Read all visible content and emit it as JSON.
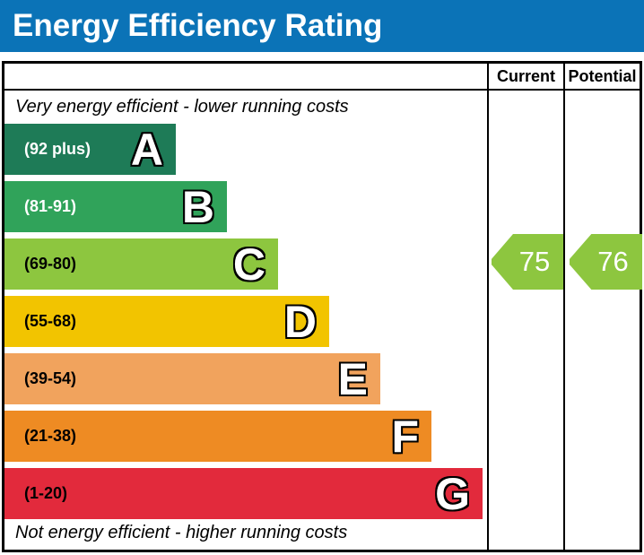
{
  "title": "Energy Efficiency Rating",
  "colors": {
    "title_bg": "#0b73b7",
    "title_text": "#ffffff",
    "border": "#000000"
  },
  "table": {
    "current_header": "Current",
    "potential_header": "Potential"
  },
  "captions": {
    "top": "Very energy efficient - lower running costs",
    "bottom": "Not energy efficient - higher running costs"
  },
  "bands": [
    {
      "letter": "A",
      "range": "(92 plus)",
      "color": "#1e7b57",
      "label_color": "#ffffff"
    },
    {
      "letter": "B",
      "range": "(81-91)",
      "color": "#30a35a",
      "label_color": "#ffffff"
    },
    {
      "letter": "C",
      "range": "(69-80)",
      "color": "#8dc63f",
      "label_color": "#000000"
    },
    {
      "letter": "D",
      "range": "(55-68)",
      "color": "#f2c400",
      "label_color": "#000000"
    },
    {
      "letter": "E",
      "range": "(39-54)",
      "color": "#f1a35d",
      "label_color": "#000000"
    },
    {
      "letter": "F",
      "range": "(21-38)",
      "color": "#ee8b23",
      "label_color": "#000000"
    },
    {
      "letter": "G",
      "range": "(1-20)",
      "color": "#e22a3c",
      "label_color": "#000000"
    }
  ],
  "ratings": {
    "current": {
      "value": "75",
      "color": "#8dc63f"
    },
    "potential": {
      "value": "76",
      "color": "#8dc63f"
    }
  },
  "chart_data": {
    "type": "bar",
    "title": "Energy Efficiency Rating",
    "categories": [
      "A",
      "B",
      "C",
      "D",
      "E",
      "F",
      "G"
    ],
    "band_ranges": [
      "92 plus",
      "81-91",
      "69-80",
      "55-68",
      "39-54",
      "21-38",
      "1-20"
    ],
    "band_colors": [
      "#1e7b57",
      "#30a35a",
      "#8dc63f",
      "#f2c400",
      "#f1a35d",
      "#ee8b23",
      "#e22a3c"
    ],
    "series": [
      {
        "name": "Current",
        "value": 75,
        "band": "C"
      },
      {
        "name": "Potential",
        "value": 76,
        "band": "C"
      }
    ],
    "value_range": [
      1,
      100
    ],
    "annotations": [
      "Very energy efficient - lower running costs",
      "Not energy efficient - higher running costs"
    ],
    "legend_position": "none",
    "grid": false
  }
}
